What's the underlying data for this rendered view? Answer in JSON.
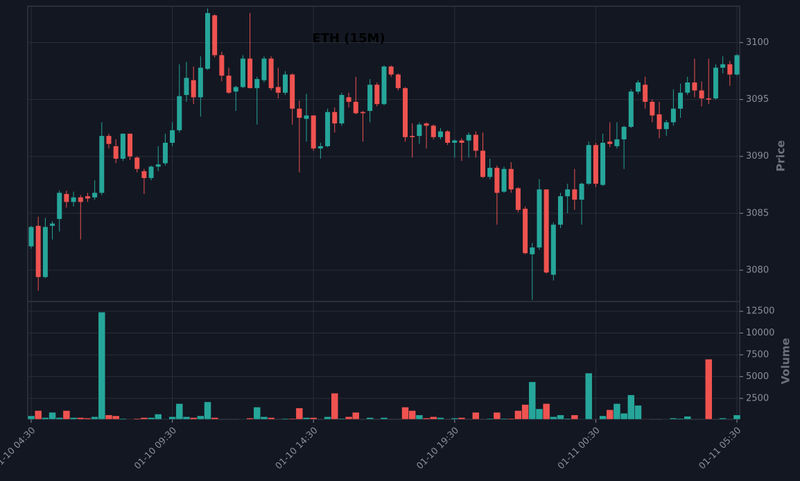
{
  "chart_data": {
    "type": "candlestick",
    "title": "ETH (15M)",
    "ylabel": "Price",
    "volume_label": "Volume",
    "x": [
      "01-10 04:30",
      "01-10 04:45",
      "01-10 05:00",
      "01-10 05:15",
      "01-10 05:30",
      "01-10 05:45",
      "01-10 06:00",
      "01-10 06:15",
      "01-10 06:30",
      "01-10 06:45",
      "01-10 07:00",
      "01-10 07:15",
      "01-10 07:30",
      "01-10 07:45",
      "01-10 08:00",
      "01-10 08:15",
      "01-10 08:30",
      "01-10 08:45",
      "01-10 09:00",
      "01-10 09:15",
      "01-10 09:30",
      "01-10 09:45",
      "01-10 10:00",
      "01-10 10:15",
      "01-10 10:30",
      "01-10 10:45",
      "01-10 11:00",
      "01-10 11:15",
      "01-10 11:30",
      "01-10 11:45",
      "01-10 12:00",
      "01-10 12:15",
      "01-10 12:30",
      "01-10 12:45",
      "01-10 13:00",
      "01-10 13:15",
      "01-10 13:30",
      "01-10 13:45",
      "01-10 14:00",
      "01-10 14:15",
      "01-10 14:30",
      "01-10 14:45",
      "01-10 15:00",
      "01-10 15:15",
      "01-10 15:30",
      "01-10 15:45",
      "01-10 16:00",
      "01-10 16:15",
      "01-10 16:30",
      "01-10 16:45",
      "01-10 17:00",
      "01-10 17:15",
      "01-10 17:30",
      "01-10 17:45",
      "01-10 18:00",
      "01-10 18:15",
      "01-10 18:30",
      "01-10 18:45",
      "01-10 19:00",
      "01-10 19:15",
      "01-10 19:30",
      "01-10 19:45",
      "01-10 20:00",
      "01-10 20:15",
      "01-10 20:30",
      "01-10 20:45",
      "01-10 21:00",
      "01-10 21:15",
      "01-10 21:30",
      "01-10 21:45",
      "01-10 22:00",
      "01-10 22:15",
      "01-10 22:30",
      "01-10 22:45",
      "01-10 23:00",
      "01-10 23:15",
      "01-10 23:30",
      "01-10 23:45",
      "01-11 00:00",
      "01-11 00:15",
      "01-11 00:30",
      "01-11 00:45",
      "01-11 01:00",
      "01-11 01:15",
      "01-11 01:30",
      "01-11 01:45",
      "01-11 02:00",
      "01-11 02:15",
      "01-11 02:30",
      "01-11 02:45",
      "01-11 03:00",
      "01-11 03:15",
      "01-11 03:30",
      "01-11 03:45",
      "01-11 04:00",
      "01-11 04:15",
      "01-11 04:30",
      "01-11 04:45",
      "01-11 05:00",
      "01-11 05:15",
      "01-11 05:30"
    ],
    "open": [
      3082.1,
      3083.9,
      3079.4,
      3083.9,
      3084.5,
      3086.7,
      3086.0,
      3086.4,
      3086.5,
      3086.4,
      3086.8,
      3091.8,
      3090.9,
      3089.8,
      3092.0,
      3089.9,
      3088.7,
      3088.1,
      3089.1,
      3089.4,
      3091.2,
      3092.3,
      3095.4,
      3096.7,
      3095.2,
      3097.7,
      3102.4,
      3098.9,
      3097.1,
      3095.7,
      3096.1,
      3098.6,
      3096.0,
      3096.7,
      3098.6,
      3096.1,
      3095.6,
      3097.2,
      3094.2,
      3093.3,
      3093.6,
      3090.7,
      3090.9,
      3093.9,
      3092.9,
      3095.2,
      3094.8,
      3093.9,
      3094.0,
      3096.3,
      3094.6,
      3097.9,
      3097.2,
      3096.0,
      3091.8,
      3091.8,
      3092.9,
      3092.7,
      3091.7,
      3092.2,
      3091.2,
      3091.4,
      3091.4,
      3091.9,
      3090.5,
      3088.2,
      3089.0,
      3086.9,
      3088.9,
      3087.2,
      3085.4,
      3081.4,
      3082.0,
      3087.1,
      3079.6,
      3084.0,
      3086.5,
      3087.1,
      3086.2,
      3087.6,
      3091.0,
      3087.5,
      3091.3,
      3090.9,
      3091.5,
      3092.6,
      3095.7,
      3096.3,
      3094.8,
      3093.7,
      3092.4,
      3093.0,
      3094.2,
      3095.6,
      3096.5,
      3095.8,
      3095.1,
      3095.1,
      3097.8,
      3098.1,
      3097.2
    ],
    "high": [
      3083.9,
      3084.7,
      3084.6,
      3084.3,
      3087.0,
      3087.0,
      3086.9,
      3086.6,
      3086.8,
      3087.9,
      3093.0,
      3092.0,
      3091.5,
      3092.0,
      3092.0,
      3090.0,
      3088.9,
      3089.2,
      3090.9,
      3092.0,
      3093.0,
      3098.1,
      3098.3,
      3097.9,
      3098.8,
      3103.0,
      3102.5,
      3099.2,
      3097.8,
      3096.2,
      3098.9,
      3102.6,
      3097.0,
      3098.8,
      3098.8,
      3097.8,
      3097.5,
      3097.3,
      3094.9,
      3095.5,
      3093.6,
      3091.2,
      3094.2,
      3094.3,
      3095.6,
      3095.6,
      3097.0,
      3094.0,
      3096.8,
      3096.5,
      3098.0,
      3098.0,
      3097.3,
      3096.1,
      3092.9,
      3093.0,
      3093.0,
      3092.8,
      3092.5,
      3092.3,
      3091.5,
      3091.6,
      3092.1,
      3092.2,
      3092.1,
      3089.8,
      3089.2,
      3089.1,
      3089.5,
      3087.3,
      3085.6,
      3082.4,
      3088.0,
      3087.1,
      3084.2,
      3086.8,
      3087.6,
      3088.9,
      3087.7,
      3091.3,
      3091.2,
      3092.0,
      3093.0,
      3093.0,
      3092.7,
      3095.9,
      3096.7,
      3097.0,
      3095.0,
      3094.8,
      3093.2,
      3095.9,
      3096.4,
      3097.0,
      3098.6,
      3096.6,
      3098.6,
      3098.1,
      3098.8,
      3098.4,
      3099.0
    ],
    "low": [
      3081.9,
      3078.2,
      3079.3,
      3082.7,
      3083.4,
      3085.5,
      3085.6,
      3082.7,
      3086.0,
      3086.2,
      3086.6,
      3090.7,
      3089.4,
      3089.6,
      3089.7,
      3088.6,
      3086.7,
      3087.9,
      3088.7,
      3089.2,
      3090.9,
      3092.1,
      3094.8,
      3094.6,
      3093.5,
      3097.6,
      3098.7,
      3096.6,
      3095.5,
      3094.0,
      3096.0,
      3096.0,
      3092.8,
      3096.5,
      3095.8,
      3095.1,
      3095.4,
      3092.8,
      3088.6,
      3091.3,
      3090.5,
      3089.8,
      3090.8,
      3092.1,
      3092.7,
      3094.3,
      3093.7,
      3091.3,
      3093.0,
      3094.4,
      3094.5,
      3097.0,
      3095.8,
      3091.3,
      3089.9,
      3091.1,
      3090.7,
      3091.5,
      3091.5,
      3091.0,
      3089.9,
      3089.6,
      3089.9,
      3089.9,
      3088.1,
      3088.0,
      3084.0,
      3086.8,
      3086.8,
      3085.1,
      3081.4,
      3077.4,
      3081.8,
      3079.7,
      3079.1,
      3083.7,
      3085.0,
      3085.3,
      3084.0,
      3087.5,
      3087.3,
      3087.4,
      3090.8,
      3090.7,
      3088.9,
      3092.5,
      3095.5,
      3094.2,
      3093.0,
      3091.6,
      3091.8,
      3092.7,
      3093.4,
      3095.4,
      3095.2,
      3094.4,
      3094.6,
      3095.0,
      3097.3,
      3096.2,
      3097.1
    ],
    "close": [
      3083.8,
      3079.4,
      3083.8,
      3084.1,
      3086.8,
      3086.0,
      3086.4,
      3086.0,
      3086.3,
      3086.8,
      3091.8,
      3091.1,
      3089.8,
      3092.0,
      3090.0,
      3088.9,
      3088.1,
      3089.1,
      3089.3,
      3091.2,
      3092.3,
      3095.3,
      3096.9,
      3095.2,
      3097.8,
      3102.6,
      3098.9,
      3097.1,
      3095.6,
      3096.1,
      3098.6,
      3096.0,
      3096.8,
      3098.6,
      3096.0,
      3095.6,
      3097.2,
      3094.2,
      3093.4,
      3093.6,
      3090.7,
      3090.9,
      3093.9,
      3092.9,
      3095.4,
      3094.8,
      3093.8,
      3093.8,
      3096.3,
      3094.6,
      3097.9,
      3097.2,
      3096.0,
      3091.7,
      3091.7,
      3092.8,
      3092.7,
      3091.7,
      3092.2,
      3091.2,
      3091.4,
      3091.2,
      3091.9,
      3090.5,
      3088.2,
      3089.0,
      3086.8,
      3088.9,
      3087.1,
      3085.3,
      3081.5,
      3082.0,
      3087.1,
      3079.8,
      3084.0,
      3086.5,
      3087.1,
      3086.2,
      3087.6,
      3091.0,
      3087.6,
      3091.2,
      3091.1,
      3091.5,
      3092.6,
      3095.7,
      3096.5,
      3094.8,
      3093.6,
      3092.4,
      3093.0,
      3094.2,
      3095.6,
      3096.5,
      3095.8,
      3095.1,
      3095.0,
      3097.8,
      3098.1,
      3097.2,
      3098.9
    ],
    "volume": [
      500,
      1100,
      300,
      900,
      300,
      1100,
      300,
      300,
      250,
      400,
      12400,
      600,
      500,
      200,
      150,
      200,
      300,
      300,
      700,
      150,
      400,
      1900,
      400,
      300,
      500,
      2100,
      300,
      100,
      100,
      100,
      150,
      250,
      1500,
      400,
      300,
      100,
      200,
      200,
      1400,
      300,
      300,
      100,
      400,
      3100,
      200,
      400,
      900,
      100,
      300,
      100,
      300,
      100,
      100,
      1500,
      1100,
      600,
      250,
      400,
      300,
      100,
      250,
      300,
      100,
      900,
      100,
      200,
      900,
      200,
      200,
      1100,
      1800,
      4400,
      1300,
      1900,
      400,
      600,
      200,
      600,
      150,
      5400,
      150,
      500,
      1200,
      1900,
      800,
      2900,
      1700,
      150,
      100,
      100,
      150,
      250,
      200,
      450,
      100,
      100,
      7000,
      100,
      250,
      100,
      600
    ],
    "ylim": [
      3077.25,
      3103.2
    ],
    "yticks": [
      3080,
      3085,
      3090,
      3095,
      3100
    ],
    "volume_ylim": [
      100,
      13620
    ],
    "volume_yticks": [
      2500,
      5000,
      7500,
      10000,
      12500
    ],
    "xticks": [
      "01-10 04:30",
      "01-10 09:30",
      "01-10 14:30",
      "01-10 19:30",
      "01-11 00:30",
      "01-11 05:30"
    ],
    "up_color": "#26a69a",
    "down_color": "#ef5350",
    "grid": true
  }
}
